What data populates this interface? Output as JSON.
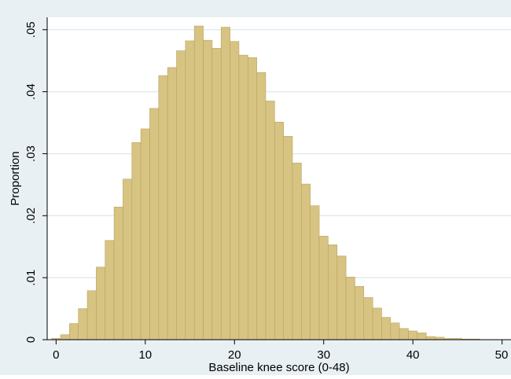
{
  "chart_data": {
    "type": "bar",
    "title": "",
    "xlabel": "Baseline knee score (0-48)",
    "ylabel": "Proportion",
    "xlim": [
      -1,
      51
    ],
    "ylim": [
      0,
      0.052
    ],
    "x_ticks": [
      {
        "value": 0,
        "label": "0"
      },
      {
        "value": 10,
        "label": "10"
      },
      {
        "value": 20,
        "label": "20"
      },
      {
        "value": 30,
        "label": "30"
      },
      {
        "value": 40,
        "label": "40"
      },
      {
        "value": 50,
        "label": "50"
      }
    ],
    "y_ticks": [
      {
        "value": 0,
        "label": "0"
      },
      {
        "value": 0.01,
        "label": ".01"
      },
      {
        "value": 0.02,
        "label": ".02"
      },
      {
        "value": 0.03,
        "label": ".03"
      },
      {
        "value": 0.04,
        "label": ".04"
      },
      {
        "value": 0.05,
        "label": ".05"
      }
    ],
    "grid": true,
    "bin_width": 1,
    "x": [
      0,
      1,
      2,
      3,
      4,
      5,
      6,
      7,
      8,
      9,
      10,
      11,
      12,
      13,
      14,
      15,
      16,
      17,
      18,
      19,
      20,
      21,
      22,
      23,
      24,
      25,
      26,
      27,
      28,
      29,
      30,
      31,
      32,
      33,
      34,
      35,
      36,
      37,
      38,
      39,
      40,
      41,
      42,
      43,
      44,
      45,
      46,
      47,
      48
    ],
    "values": [
      0.0002,
      0.0008,
      0.0026,
      0.005,
      0.0079,
      0.0117,
      0.016,
      0.0214,
      0.0259,
      0.0318,
      0.034,
      0.0373,
      0.0426,
      0.0439,
      0.0466,
      0.0482,
      0.0506,
      0.0483,
      0.047,
      0.0504,
      0.0481,
      0.0459,
      0.0455,
      0.0431,
      0.0385,
      0.0351,
      0.0328,
      0.0285,
      0.0251,
      0.0216,
      0.0167,
      0.0153,
      0.0135,
      0.0101,
      0.0086,
      0.0068,
      0.0051,
      0.0036,
      0.0027,
      0.0018,
      0.0014,
      0.0011,
      0.0005,
      0.0004,
      0.0002,
      0.0002,
      0.0001,
      0.0001,
      0.0
    ],
    "colors": {
      "outer_background": "#e9f0f3",
      "plot_background": "#ffffff",
      "grid": "#e2ebef",
      "bar_fill": "#d7c382",
      "bar_edge": "#b9a460",
      "axis": "#000000"
    }
  }
}
